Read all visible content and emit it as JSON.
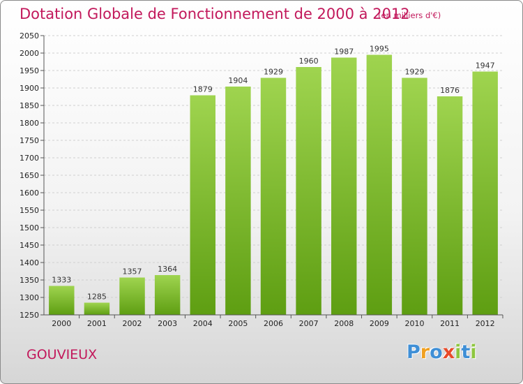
{
  "chart_data": {
    "type": "bar",
    "title": "Dotation Globale de Fonctionnement de 2000 à 2012",
    "subtitle": "(en milliers d'€)",
    "categories": [
      "2000",
      "2001",
      "2002",
      "2003",
      "2004",
      "2005",
      "2006",
      "2007",
      "2008",
      "2009",
      "2010",
      "2011",
      "2012"
    ],
    "values": [
      1333,
      1285,
      1357,
      1364,
      1879,
      1904,
      1929,
      1960,
      1987,
      1995,
      1929,
      1876,
      1947
    ],
    "ylim": [
      1250,
      2050
    ],
    "yticks": [
      1250,
      1300,
      1350,
      1400,
      1450,
      1500,
      1550,
      1600,
      1650,
      1700,
      1750,
      1800,
      1850,
      1900,
      1950,
      2000,
      2050
    ],
    "grid": true,
    "bar_color_top": "#9fd44f",
    "bar_color_bottom": "#5e9e12"
  },
  "footer": {
    "commune": "GOUVIEUX",
    "logo_text": "Proxiti"
  },
  "colors": {
    "title": "#c2185b",
    "logo": [
      "#3f8fd6",
      "#f0a020",
      "#3f8fd6",
      "#e84a2a",
      "#8ec63f",
      "#3f8fd6",
      "#8ec63f"
    ]
  }
}
